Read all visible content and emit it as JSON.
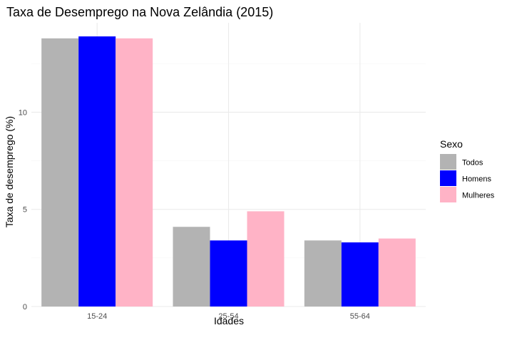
{
  "chart_data": {
    "type": "bar",
    "title": "Taxa de Desemprego na Nova Zelândia (2015)",
    "xlabel": "Idades",
    "ylabel": "Taxa de desemprego (%)",
    "categories": [
      "15-24",
      "25-54",
      "55-64"
    ],
    "series": [
      {
        "name": "Todos",
        "color": "#b3b3b3",
        "values": [
          13.8,
          4.1,
          3.4
        ]
      },
      {
        "name": "Homens",
        "color": "#0000ff",
        "values": [
          13.9,
          3.4,
          3.3
        ]
      },
      {
        "name": "Mulheres",
        "color": "#ffb3c6",
        "values": [
          13.8,
          4.9,
          3.5
        ]
      }
    ],
    "ylim": [
      0,
      14.6
    ],
    "yticks": [
      0,
      5,
      10
    ],
    "ytick_labels": [
      "0",
      "5",
      "10"
    ],
    "grid": true,
    "legend": {
      "title": "Sexo",
      "placement": "right"
    }
  }
}
